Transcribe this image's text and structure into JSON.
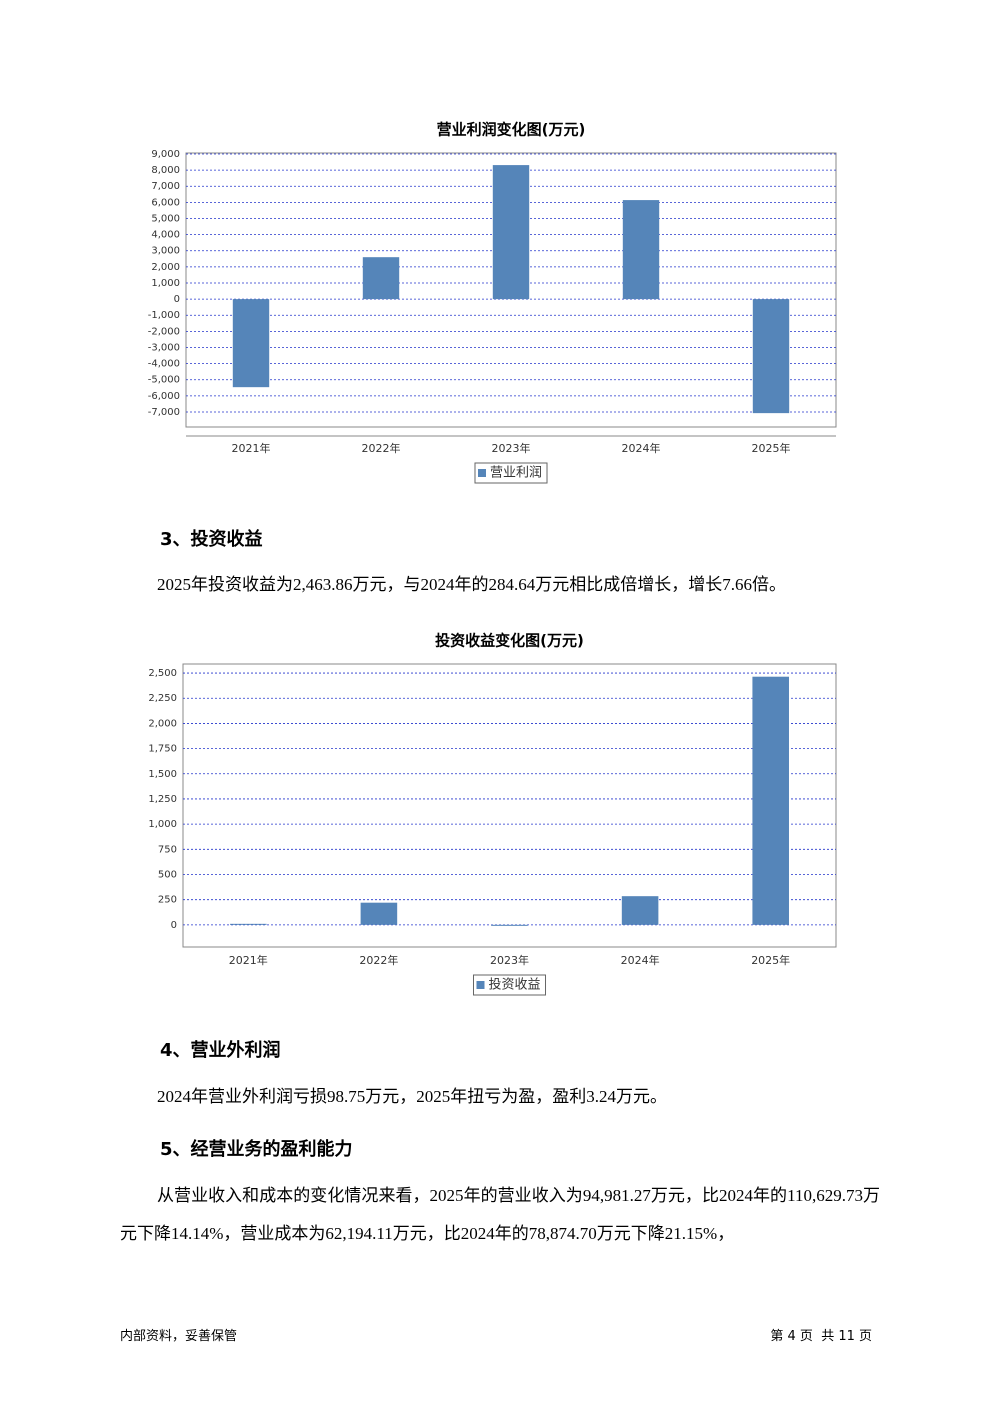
{
  "chart_data": [
    {
      "type": "bar",
      "title": "营业利润变化图(万元)",
      "categories": [
        "2021年",
        "2022年",
        "2023年",
        "2024年",
        "2025年"
      ],
      "series": [
        {
          "name": "营业利润",
          "color": "#5585b9",
          "values": [
            -5460,
            2600,
            8310,
            6140,
            -7070
          ]
        }
      ],
      "ylim": [
        -7930,
        9060
      ],
      "yticks": [
        {
          "value": 9000,
          "label": "9,000"
        },
        {
          "value": 8000,
          "label": "8,000"
        },
        {
          "value": 7000,
          "label": "7,000"
        },
        {
          "value": 6000,
          "label": "6,000"
        },
        {
          "value": 5000,
          "label": "5,000"
        },
        {
          "value": 4000,
          "label": "4,000"
        },
        {
          "value": 3000,
          "label": "3,000"
        },
        {
          "value": 2000,
          "label": "2,000"
        },
        {
          "value": 1000,
          "label": "1,000"
        },
        0,
        {
          "value": -1000,
          "label": "-1,000"
        },
        {
          "value": -2000,
          "label": "-2,000"
        },
        {
          "value": -3000,
          "label": "-3,000"
        },
        {
          "value": -4000,
          "label": "-4,000"
        },
        {
          "value": -5000,
          "label": "-5,000"
        },
        {
          "value": -6000,
          "label": "-6,000"
        },
        {
          "value": -7000,
          "label": "-7,000"
        }
      ],
      "grid": true
    },
    {
      "type": "bar",
      "title": "投资收益变化图(万元)",
      "categories": [
        "2021年",
        "2022年",
        "2023年",
        "2024年",
        "2025年"
      ],
      "series": [
        {
          "name": "投资收益",
          "color": "#5585b9",
          "values": [
            10,
            220,
            -8,
            284.64,
            2463.86
          ]
        }
      ],
      "ylim": [
        -220,
        2590
      ],
      "yticks": [
        {
          "value": 2500,
          "label": "2,500"
        },
        {
          "value": 2250,
          "label": "2,250"
        },
        {
          "value": 2000,
          "label": "2,000"
        },
        {
          "value": 1750,
          "label": "1,750"
        },
        {
          "value": 1500,
          "label": "1,500"
        },
        {
          "value": 1250,
          "label": "1,250"
        },
        {
          "value": 1000,
          "label": "1,000"
        },
        750,
        500,
        250,
        0
      ],
      "grid": true
    }
  ],
  "document": {
    "sections": [
      {
        "heading": "3、投资收益",
        "paragraphs": [
          "2025年投资收益为2,463.86万元，与2024年的284.64万元相比成倍增长，增长7.66倍。"
        ]
      },
      {
        "heading": "4、营业外利润",
        "paragraphs": [
          "2024年营业外利润亏损98.75万元，2025年扭亏为盈，盈利3.24万元。"
        ]
      },
      {
        "heading": "5、经营业务的盈利能力",
        "paragraphs": [
          "从营业收入和成本的变化情况来看，2025年的营业收入为94,981.27万元，比2024年的110,629.73万元下降14.14%，营业成本为62,194.11万元，比2024年的78,874.70万元下降21.15%，"
        ]
      }
    ],
    "footer": {
      "left": "内部资料，妥善保管",
      "right": "第 4 页  共 11 页"
    }
  }
}
